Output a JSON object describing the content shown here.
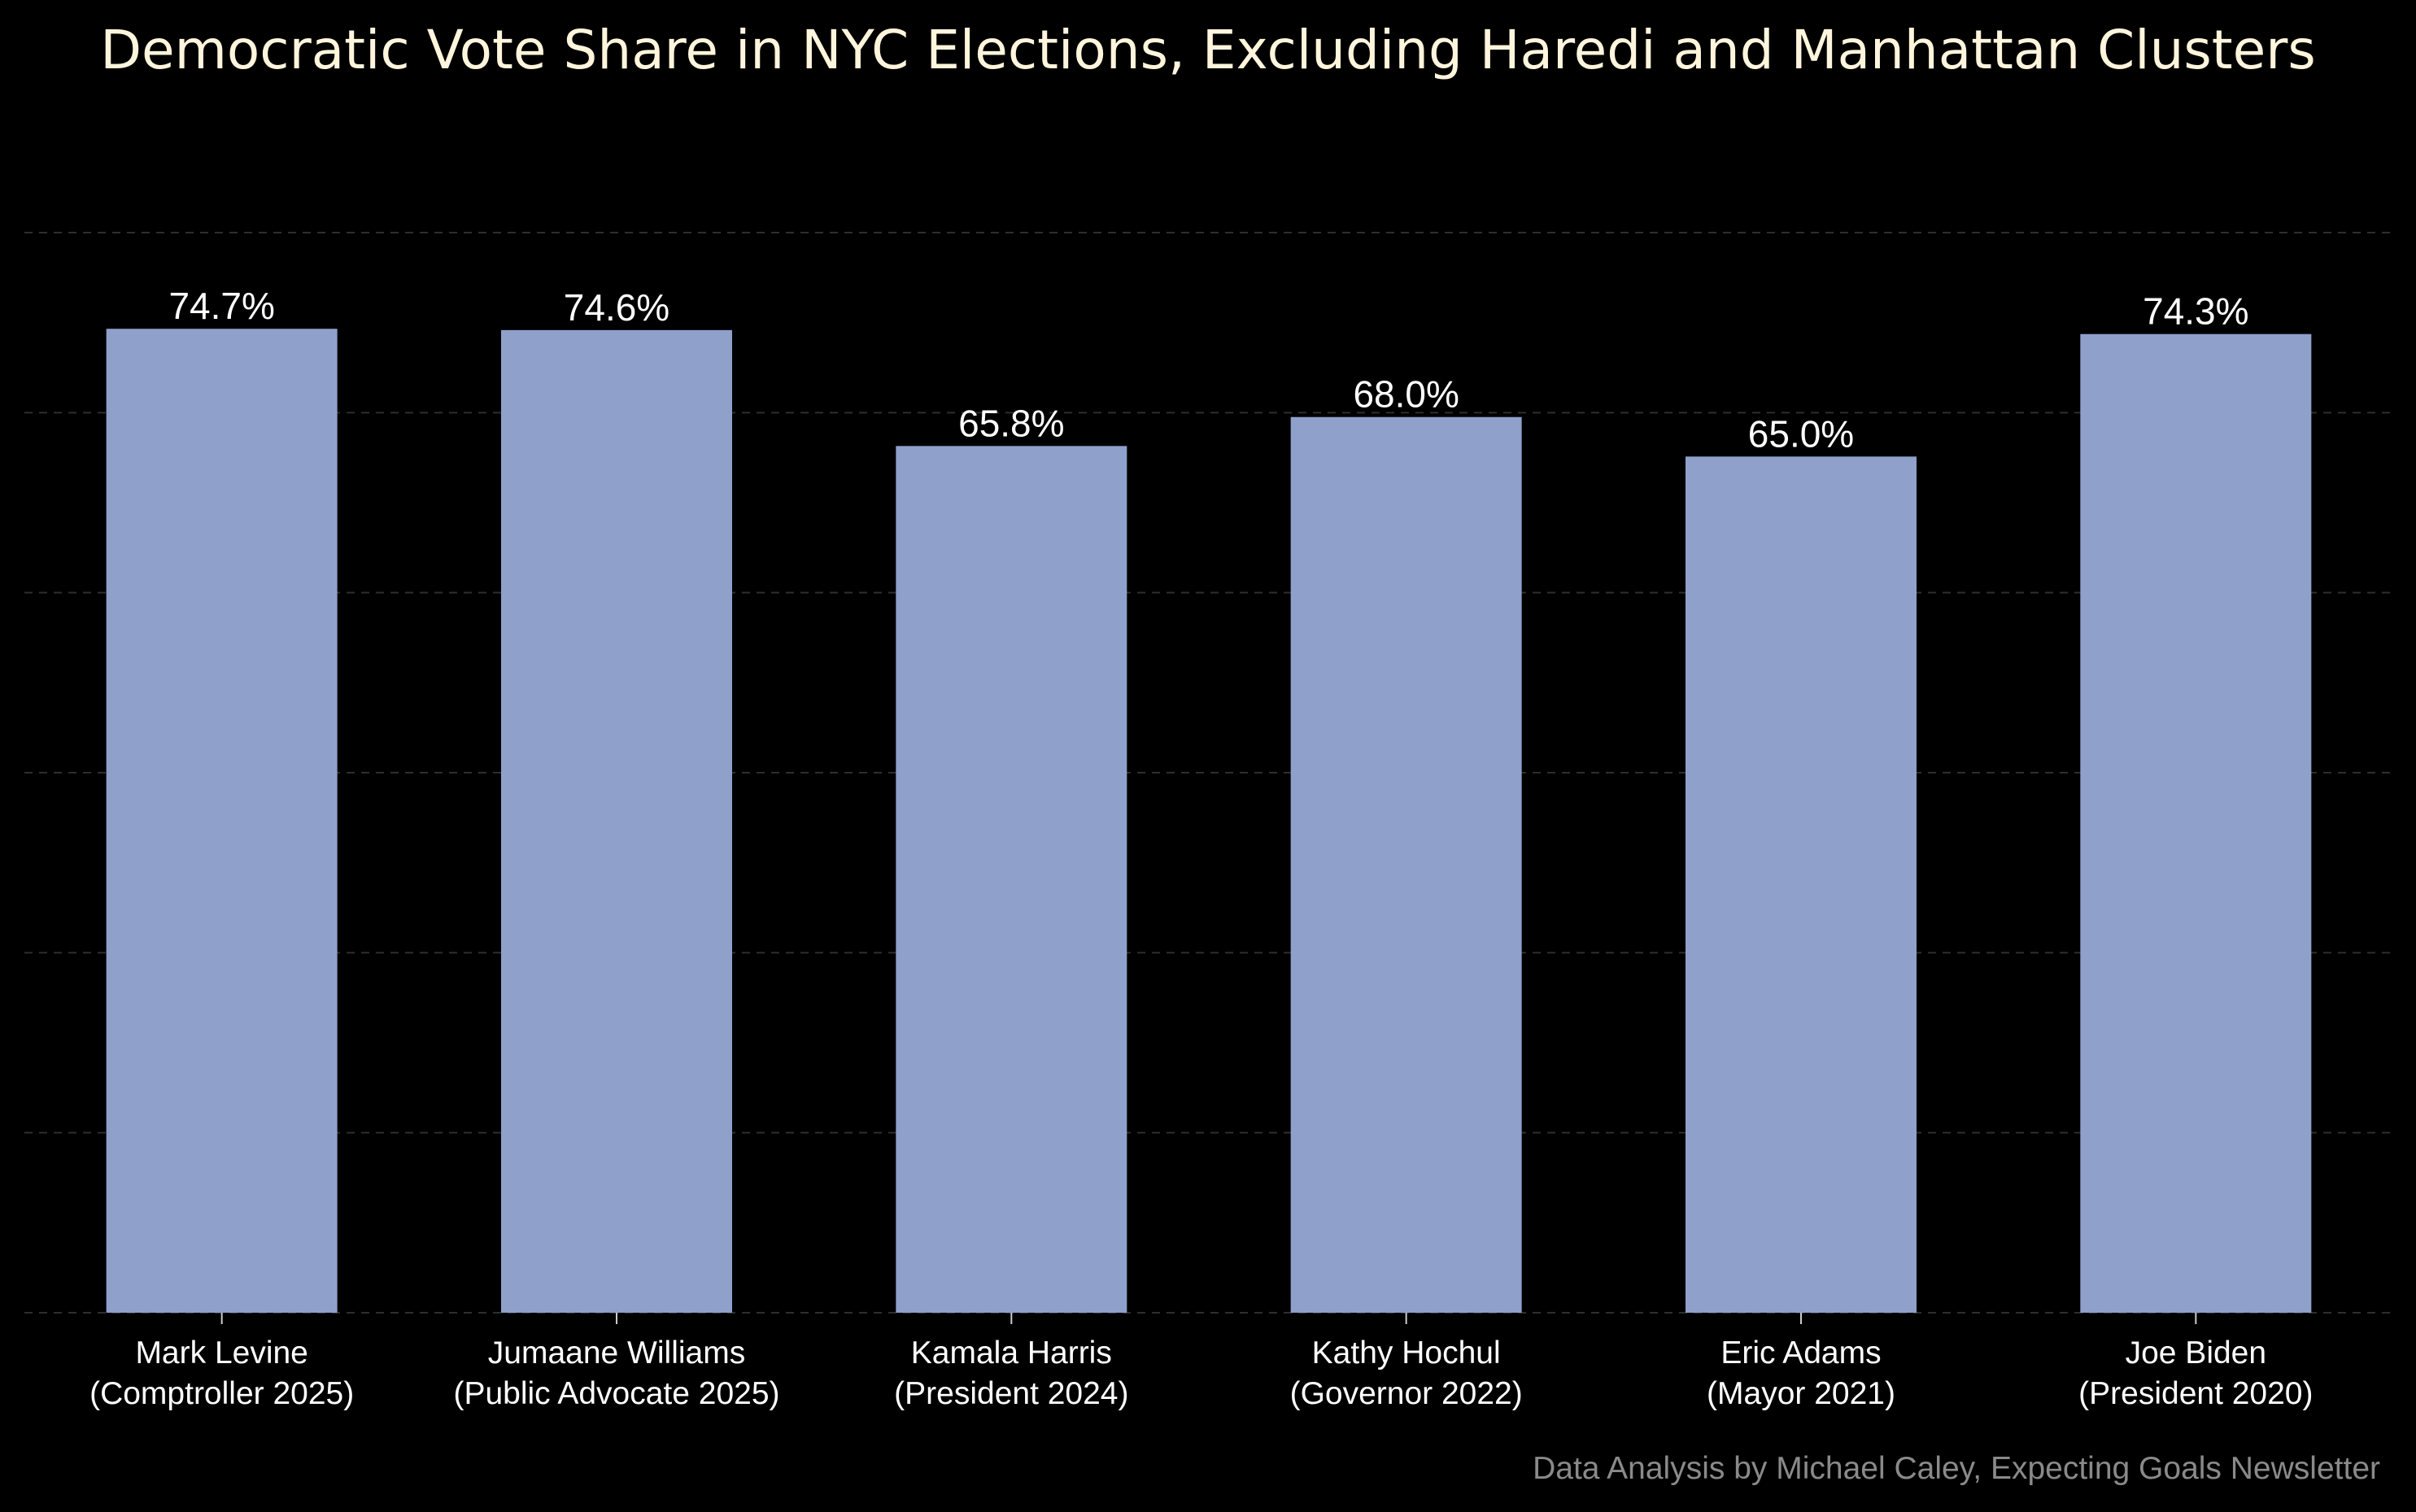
{
  "chart_data": {
    "type": "bar",
    "title": "Democratic Vote Share in NYC Elections, Excluding Haredi and Manhattan Clusters",
    "categories": [
      [
        "Mark Levine",
        "(Comptroller 2025)"
      ],
      [
        "Jumaane Williams",
        "(Public Advocate 2025)"
      ],
      [
        "Kamala Harris",
        "(President 2024)"
      ],
      [
        "Kathy Hochul",
        "(Governor 2022)"
      ],
      [
        "Eric Adams",
        "(Mayor 2021)"
      ],
      [
        "Joe Biden",
        "(President 2020)"
      ]
    ],
    "values": [
      74.7,
      74.6,
      65.8,
      68.0,
      65.0,
      74.3
    ],
    "value_labels": [
      "74.7%",
      "74.6%",
      "65.8%",
      "68.0%",
      "65.0%",
      "74.3%"
    ],
    "xlabel": "",
    "ylabel": "",
    "ylim": [
      0,
      82
    ],
    "gridlines": [
      0,
      13.67,
      27.33,
      41,
      54.67,
      68.33,
      82
    ],
    "grid": true,
    "legend": "none",
    "bar_color": "#8FA0CB",
    "background_color": "#000000",
    "caption": "Data Analysis by Michael Caley, Expecting Goals Newsletter"
  }
}
